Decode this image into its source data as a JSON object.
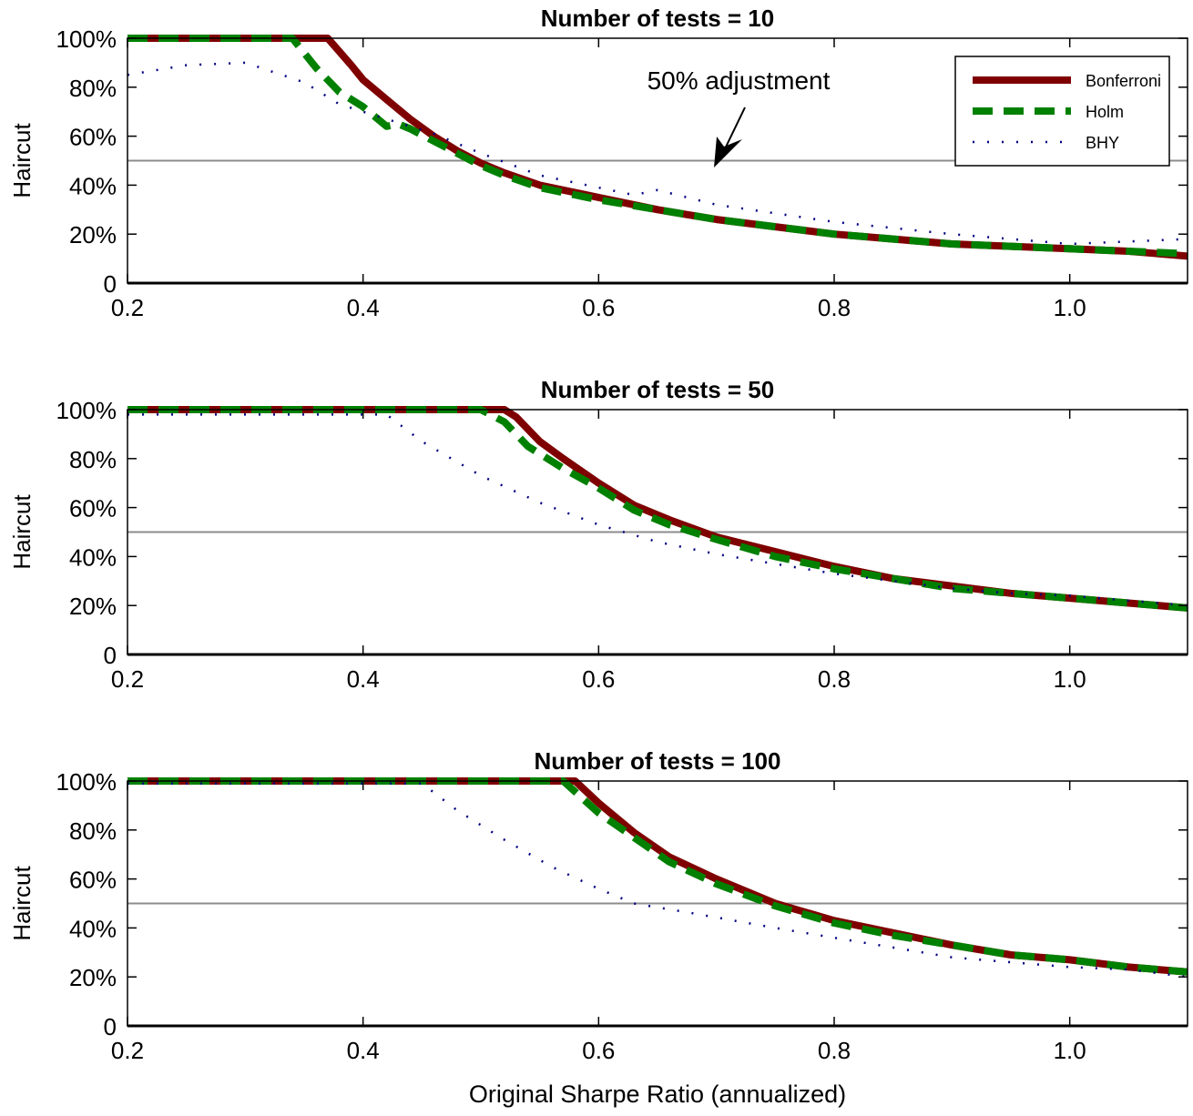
{
  "chart_data": [
    {
      "type": "line",
      "title": "Number of tests = 10",
      "xlabel": "",
      "ylabel": "Haircut",
      "xlim": [
        0.2,
        1.1
      ],
      "ylim": [
        0,
        1.0
      ],
      "x_ticks": [
        "0.2",
        "0.4",
        "0.6",
        "0.8",
        "1.0"
      ],
      "y_ticks": [
        "0",
        "20%",
        "40%",
        "60%",
        "80%",
        "100%"
      ],
      "reference_line": 0.5,
      "annotation": "50% adjustment",
      "legend": {
        "placement": "top-right"
      },
      "series": [
        {
          "name": "Bonferroni",
          "color": "#7f0000",
          "style": "solid",
          "points": [
            [
              0.2,
              1.0
            ],
            [
              0.37,
              1.0
            ],
            [
              0.39,
              0.89
            ],
            [
              0.4,
              0.83
            ],
            [
              0.42,
              0.75
            ],
            [
              0.44,
              0.67
            ],
            [
              0.46,
              0.6
            ],
            [
              0.48,
              0.54
            ],
            [
              0.5,
              0.49
            ],
            [
              0.52,
              0.45
            ],
            [
              0.55,
              0.4
            ],
            [
              0.6,
              0.35
            ],
            [
              0.65,
              0.3
            ],
            [
              0.7,
              0.26
            ],
            [
              0.75,
              0.23
            ],
            [
              0.8,
              0.2
            ],
            [
              0.85,
              0.18
            ],
            [
              0.9,
              0.16
            ],
            [
              0.95,
              0.15
            ],
            [
              1.0,
              0.14
            ],
            [
              1.05,
              0.13
            ],
            [
              1.1,
              0.11
            ]
          ]
        },
        {
          "name": "Holm",
          "color": "#008000",
          "style": "dashed",
          "points": [
            [
              0.2,
              1.0
            ],
            [
              0.34,
              1.0
            ],
            [
              0.36,
              0.88
            ],
            [
              0.38,
              0.78
            ],
            [
              0.4,
              0.72
            ],
            [
              0.42,
              0.64
            ],
            [
              0.43,
              0.65
            ],
            [
              0.44,
              0.63
            ],
            [
              0.46,
              0.58
            ],
            [
              0.48,
              0.53
            ],
            [
              0.5,
              0.48
            ],
            [
              0.52,
              0.44
            ],
            [
              0.55,
              0.39
            ],
            [
              0.6,
              0.34
            ],
            [
              0.65,
              0.3
            ],
            [
              0.7,
              0.26
            ],
            [
              0.75,
              0.23
            ],
            [
              0.8,
              0.2
            ],
            [
              0.85,
              0.18
            ],
            [
              0.9,
              0.16
            ],
            [
              0.95,
              0.15
            ],
            [
              1.0,
              0.14
            ],
            [
              1.05,
              0.13
            ],
            [
              1.1,
              0.12
            ]
          ]
        },
        {
          "name": "BHY",
          "color": "#000080",
          "style": "dotted",
          "points": [
            [
              0.2,
              0.85
            ],
            [
              0.25,
              0.89
            ],
            [
              0.3,
              0.9
            ],
            [
              0.35,
              0.82
            ],
            [
              0.38,
              0.73
            ],
            [
              0.42,
              0.67
            ],
            [
              0.46,
              0.61
            ],
            [
              0.5,
              0.53
            ],
            [
              0.55,
              0.44
            ],
            [
              0.6,
              0.39
            ],
            [
              0.63,
              0.36
            ],
            [
              0.65,
              0.38
            ],
            [
              0.7,
              0.32
            ],
            [
              0.8,
              0.25
            ],
            [
              0.9,
              0.2
            ],
            [
              1.0,
              0.16
            ],
            [
              1.05,
              0.17
            ],
            [
              1.1,
              0.18
            ]
          ]
        }
      ]
    },
    {
      "type": "line",
      "title": "Number of tests = 50",
      "xlabel": "",
      "ylabel": "Haircut",
      "xlim": [
        0.2,
        1.1
      ],
      "ylim": [
        0,
        1.0
      ],
      "x_ticks": [
        "0.2",
        "0.4",
        "0.6",
        "0.8",
        "1.0"
      ],
      "y_ticks": [
        "0",
        "20%",
        "40%",
        "60%",
        "80%",
        "100%"
      ],
      "reference_line": 0.5,
      "series": [
        {
          "name": "Bonferroni",
          "color": "#7f0000",
          "style": "solid",
          "points": [
            [
              0.2,
              1.0
            ],
            [
              0.52,
              1.0
            ],
            [
              0.53,
              0.97
            ],
            [
              0.55,
              0.87
            ],
            [
              0.57,
              0.8
            ],
            [
              0.6,
              0.7
            ],
            [
              0.63,
              0.61
            ],
            [
              0.66,
              0.55
            ],
            [
              0.7,
              0.48
            ],
            [
              0.75,
              0.42
            ],
            [
              0.8,
              0.36
            ],
            [
              0.85,
              0.31
            ],
            [
              0.9,
              0.28
            ],
            [
              0.95,
              0.25
            ],
            [
              1.0,
              0.23
            ],
            [
              1.05,
              0.21
            ],
            [
              1.1,
              0.19
            ]
          ]
        },
        {
          "name": "Holm",
          "color": "#008000",
          "style": "dashed",
          "points": [
            [
              0.2,
              1.0
            ],
            [
              0.5,
              1.0
            ],
            [
              0.52,
              0.95
            ],
            [
              0.54,
              0.85
            ],
            [
              0.57,
              0.76
            ],
            [
              0.6,
              0.68
            ],
            [
              0.63,
              0.59
            ],
            [
              0.66,
              0.53
            ],
            [
              0.7,
              0.47
            ],
            [
              0.75,
              0.4
            ],
            [
              0.8,
              0.35
            ],
            [
              0.85,
              0.31
            ],
            [
              0.9,
              0.27
            ],
            [
              0.95,
              0.25
            ],
            [
              1.0,
              0.23
            ],
            [
              1.05,
              0.21
            ],
            [
              1.1,
              0.19
            ]
          ]
        },
        {
          "name": "BHY",
          "color": "#000080",
          "style": "dotted",
          "points": [
            [
              0.2,
              0.98
            ],
            [
              0.42,
              0.98
            ],
            [
              0.45,
              0.87
            ],
            [
              0.5,
              0.73
            ],
            [
              0.55,
              0.62
            ],
            [
              0.6,
              0.53
            ],
            [
              0.65,
              0.46
            ],
            [
              0.7,
              0.41
            ],
            [
              0.75,
              0.37
            ],
            [
              0.8,
              0.33
            ],
            [
              0.85,
              0.3
            ],
            [
              0.9,
              0.27
            ],
            [
              0.95,
              0.25
            ],
            [
              1.0,
              0.24
            ],
            [
              1.05,
              0.22
            ],
            [
              1.1,
              0.2
            ]
          ]
        }
      ]
    },
    {
      "type": "line",
      "title": "Number of tests = 100",
      "xlabel": "Original Sharpe Ratio (annualized)",
      "ylabel": "Haircut",
      "xlim": [
        0.2,
        1.1
      ],
      "ylim": [
        0,
        1.0
      ],
      "x_ticks": [
        "0.2",
        "0.4",
        "0.6",
        "0.8",
        "1.0"
      ],
      "y_ticks": [
        "0",
        "20%",
        "40%",
        "60%",
        "80%",
        "100%"
      ],
      "reference_line": 0.5,
      "series": [
        {
          "name": "Bonferroni",
          "color": "#7f0000",
          "style": "solid",
          "points": [
            [
              0.2,
              1.0
            ],
            [
              0.58,
              1.0
            ],
            [
              0.6,
              0.91
            ],
            [
              0.63,
              0.79
            ],
            [
              0.66,
              0.69
            ],
            [
              0.7,
              0.6
            ],
            [
              0.75,
              0.5
            ],
            [
              0.8,
              0.43
            ],
            [
              0.85,
              0.38
            ],
            [
              0.9,
              0.33
            ],
            [
              0.95,
              0.29
            ],
            [
              1.0,
              0.27
            ],
            [
              1.05,
              0.24
            ],
            [
              1.1,
              0.22
            ]
          ]
        },
        {
          "name": "Holm",
          "color": "#008000",
          "style": "dashed",
          "points": [
            [
              0.2,
              1.0
            ],
            [
              0.57,
              1.0
            ],
            [
              0.6,
              0.87
            ],
            [
              0.63,
              0.77
            ],
            [
              0.66,
              0.67
            ],
            [
              0.7,
              0.58
            ],
            [
              0.75,
              0.49
            ],
            [
              0.8,
              0.42
            ],
            [
              0.85,
              0.37
            ],
            [
              0.9,
              0.33
            ],
            [
              0.95,
              0.29
            ],
            [
              1.0,
              0.27
            ],
            [
              1.05,
              0.24
            ],
            [
              1.1,
              0.22
            ]
          ]
        },
        {
          "name": "BHY",
          "color": "#000080",
          "style": "dotted",
          "points": [
            [
              0.2,
              0.99
            ],
            [
              0.45,
              0.99
            ],
            [
              0.48,
              0.88
            ],
            [
              0.52,
              0.76
            ],
            [
              0.56,
              0.65
            ],
            [
              0.6,
              0.56
            ],
            [
              0.63,
              0.5
            ],
            [
              0.68,
              0.46
            ],
            [
              0.75,
              0.4
            ],
            [
              0.8,
              0.36
            ],
            [
              0.85,
              0.32
            ],
            [
              0.9,
              0.28
            ],
            [
              0.95,
              0.26
            ],
            [
              1.0,
              0.24
            ],
            [
              1.05,
              0.23
            ],
            [
              1.1,
              0.2
            ]
          ]
        }
      ]
    }
  ]
}
